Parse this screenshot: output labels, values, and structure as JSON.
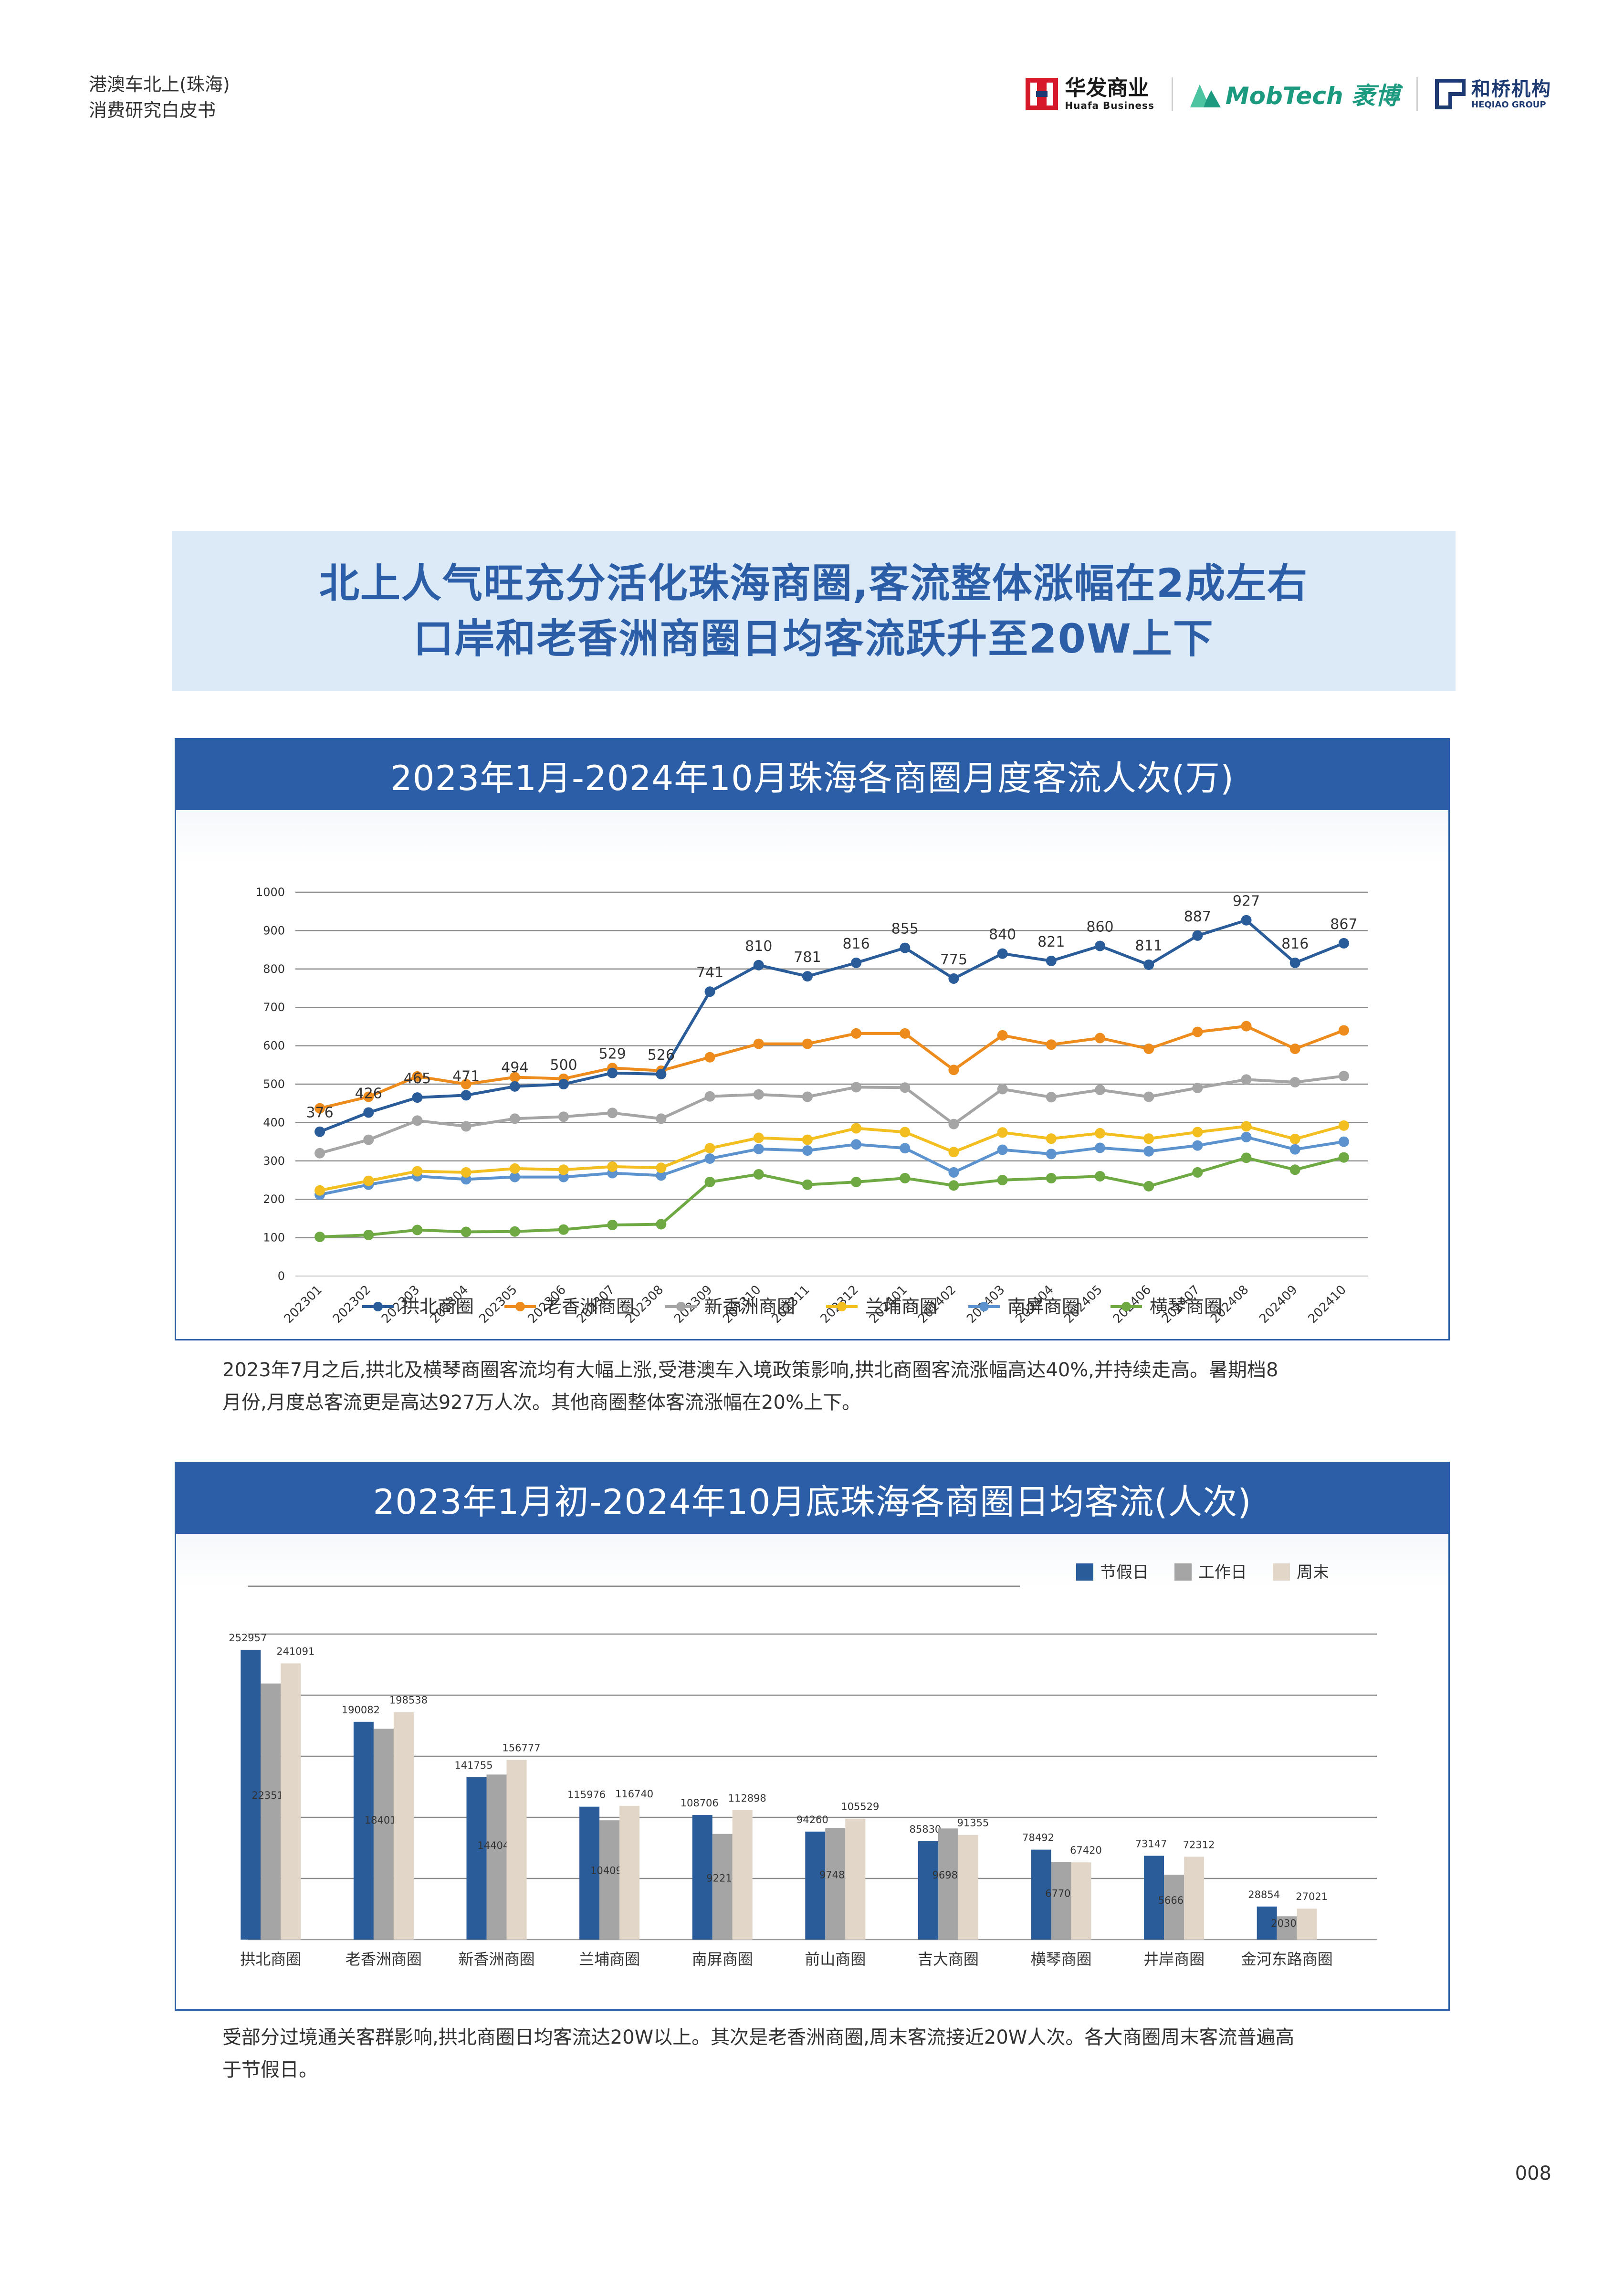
{
  "header": {
    "title_line1": "港澳车北上(珠海)",
    "title_line2": "消费研究白皮书"
  },
  "logos": {
    "huafa_cn": "华发商业",
    "huafa_en": "Huafa Business",
    "mobtech": "MobTech 袤博",
    "heqiao_cn": "和桥机构",
    "heqiao_en": "HEQIAO GROUP"
  },
  "headline": {
    "line1": "北上人气旺充分活化珠海商圈,客流整体涨幅在2成左右",
    "line2": "口岸和老香洲商圈日均客流跃升至20W上下"
  },
  "panel1": {
    "title": "2023年1月-2024年10月珠海各商圈月度客流人次(万)"
  },
  "para1": {
    "line1": "2023年7月之后,拱北及横琴商圈客流均有大幅上涨,受港澳车入境政策影响,拱北商圈客流涨幅高达40%,并持续走高。暑期档8",
    "line2": "月份,月度总客流更是高达927万人次。其他商圈整体客流涨幅在20%上下。"
  },
  "panel2": {
    "title": "2023年1月初-2024年10月底珠海各商圈日均客流(人次)"
  },
  "para2": {
    "line1": "受部分过境通关客群影响,拱北商圈日均客流达20W以上。其次是老香洲商圈,周末客流接近20W人次。各大商圈周末客流普遍高",
    "line2": "于节假日。"
  },
  "page_number": "008",
  "colors": {
    "brand_blue": "#2b5ea7",
    "headline_bg": "#dce9f6"
  },
  "chart_data": [
    {
      "type": "line",
      "title": "2023年1月-2024年10月珠海各商圈月度客流人次(万)",
      "ylim": [
        0,
        1000
      ],
      "yticks": [
        0,
        100,
        200,
        300,
        400,
        500,
        600,
        700,
        800,
        900,
        1000
      ],
      "grid": true,
      "legend_position": "bottom",
      "x": [
        "202301",
        "202302",
        "202303",
        "202304",
        "202305",
        "202306",
        "202307",
        "202308",
        "202309",
        "202310",
        "202311",
        "202312",
        "202401",
        "202402",
        "202403",
        "202404",
        "202405",
        "202406",
        "202407",
        "202408",
        "202409",
        "202410"
      ],
      "series": [
        {
          "name": "拱北商圈",
          "color": "#2a5c9a",
          "labeled": true,
          "values": [
            376,
            426,
            465,
            471,
            494,
            500,
            529,
            526,
            741,
            810,
            781,
            816,
            855,
            775,
            840,
            821,
            860,
            811,
            887,
            927,
            816,
            867
          ]
        },
        {
          "name": "老香洲商圈",
          "color": "#ed8b1c",
          "labeled": false,
          "values": [
            437,
            467,
            520,
            500,
            518,
            514,
            542,
            535,
            570,
            605,
            605,
            632,
            632,
            537,
            627,
            603,
            620,
            592,
            636,
            651,
            592,
            640
          ]
        },
        {
          "name": "新香洲商圈",
          "color": "#a5a5a5",
          "labeled": false,
          "values": [
            320,
            355,
            405,
            390,
            410,
            415,
            425,
            410,
            468,
            473,
            467,
            492,
            491,
            396,
            487,
            466,
            485,
            467,
            490,
            512,
            505,
            521
          ]
        },
        {
          "name": "兰埔商圈",
          "color": "#f3be1f",
          "labeled": false,
          "values": [
            223,
            248,
            273,
            270,
            280,
            277,
            285,
            282,
            333,
            360,
            355,
            385,
            375,
            323,
            374,
            358,
            372,
            358,
            375,
            390,
            357,
            392
          ]
        },
        {
          "name": "南屏商圈",
          "color": "#5c93cf",
          "labeled": false,
          "values": [
            212,
            238,
            260,
            252,
            258,
            258,
            268,
            262,
            306,
            331,
            327,
            343,
            333,
            270,
            329,
            318,
            334,
            325,
            340,
            362,
            330,
            350
          ]
        },
        {
          "name": "横琴商圈",
          "color": "#6ea944",
          "labeled": false,
          "values": [
            102,
            107,
            120,
            115,
            116,
            121,
            133,
            135,
            245,
            265,
            238,
            245,
            255,
            236,
            250,
            255,
            260,
            234,
            270,
            308,
            277,
            309
          ]
        }
      ]
    },
    {
      "type": "bar",
      "title": "2023年1月初-2024年10月底珠海各商圈日均客流(人次)",
      "legend_position": "top-right",
      "categories": [
        "拱北商圈",
        "老香洲商圈",
        "新香洲商圈",
        "兰埔商圈",
        "南屏商圈",
        "前山商圈",
        "吉大商圈",
        "横琴商圈",
        "井岸商圈",
        "金河东路商圈"
      ],
      "series": [
        {
          "name": "节假日",
          "color": "#2a5c9a",
          "values": [
            252957,
            190082,
            141755,
            115976,
            108706,
            94260,
            85830,
            78492,
            73147,
            28854
          ]
        },
        {
          "name": "工作日",
          "color": "#a5a5a5",
          "values": [
            223513,
            184017,
            144045,
            104094,
            92218,
            97485,
            96982,
            67706,
            56666,
            20301
          ]
        },
        {
          "name": "周末",
          "color": "#e2d6c8",
          "values": [
            241091,
            198538,
            156777,
            116740,
            112898,
            105529,
            91355,
            67420,
            72312,
            27021
          ]
        }
      ]
    }
  ]
}
